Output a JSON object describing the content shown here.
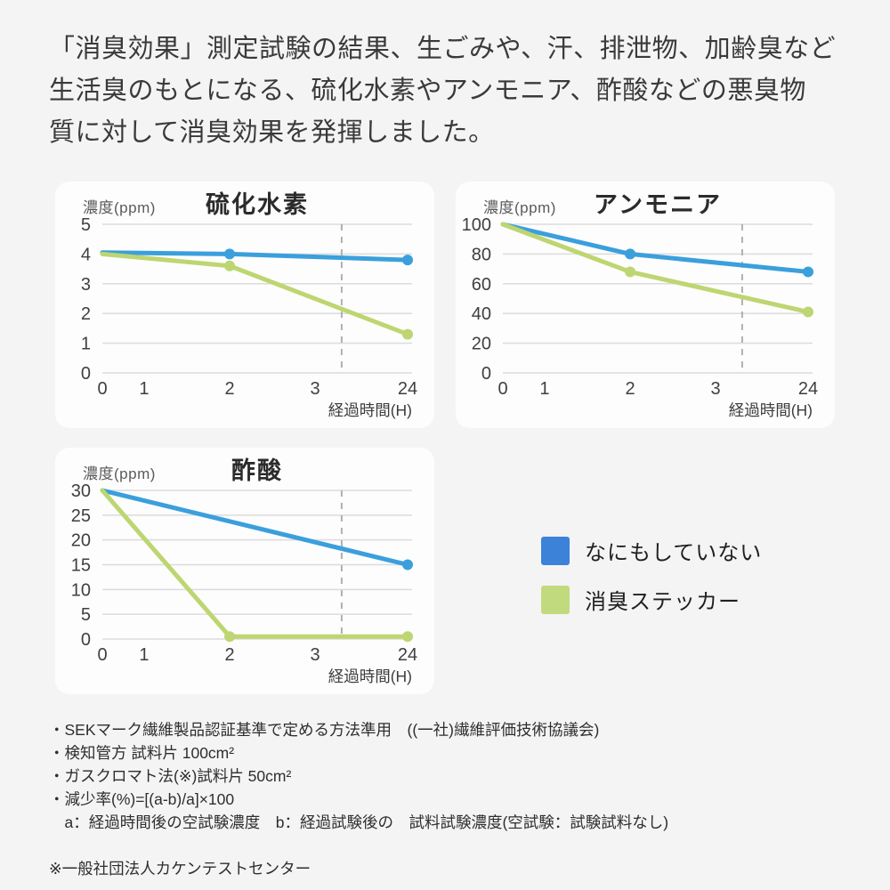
{
  "page": {
    "background": "#f4f4f5",
    "header": "「消臭効果」測定試験の結果、生ごみや、汗、排泄物、加齢臭など\n生活臭のもとになる、硫化水素やアンモニア、酢酸などの悪臭物\n質に対して消臭効果を発揮しました。"
  },
  "colors": {
    "line_blue": "#3b9fdc",
    "line_green": "#bdd671",
    "legend_blue": "#3b82d8",
    "legend_green": "#c1da7d",
    "grid": "#dcdcdc",
    "dashed_guide": "#b0b0b0",
    "tick_label": "#3f3f3f",
    "card_background": "#fdfdfe"
  },
  "chart_data": [
    {
      "type": "line",
      "title": "硫化水素",
      "ylabel": "濃度(ppm)",
      "xlabel": "経過時間(H)",
      "x_tick_labels": [
        "0",
        "1",
        "2",
        "3",
        "24"
      ],
      "x_positions": [
        0,
        0.137,
        0.417,
        0.697,
        1
      ],
      "y_ticks": [
        0,
        1,
        2,
        3,
        4,
        5
      ],
      "ylim": [
        0,
        5
      ],
      "dashed_guide_x": 0.784,
      "grid": true,
      "series": [
        {
          "name": "なにもしていない",
          "color": "#3b9fdc",
          "values": [
            4.05,
            null,
            4.0,
            null,
            3.8
          ],
          "markers": [
            false,
            false,
            true,
            false,
            true
          ]
        },
        {
          "name": "消臭ステッカー",
          "color": "#bdd671",
          "values": [
            4.0,
            null,
            3.6,
            null,
            1.3
          ],
          "markers": [
            false,
            false,
            true,
            false,
            true
          ]
        }
      ]
    },
    {
      "type": "line",
      "title": "アンモニア",
      "ylabel": "濃度(ppm)",
      "xlabel": "経過時間(H)",
      "x_tick_labels": [
        "0",
        "1",
        "2",
        "3",
        "24"
      ],
      "x_positions": [
        0,
        0.137,
        0.417,
        0.697,
        1
      ],
      "y_ticks": [
        0,
        20,
        40,
        60,
        80,
        100
      ],
      "ylim": [
        0,
        100
      ],
      "dashed_guide_x": 0.784,
      "grid": true,
      "series": [
        {
          "name": "なにもしていない",
          "color": "#3b9fdc",
          "values": [
            100,
            null,
            80,
            null,
            68
          ],
          "markers": [
            false,
            false,
            true,
            false,
            true
          ]
        },
        {
          "name": "消臭ステッカー",
          "color": "#bdd671",
          "values": [
            100,
            null,
            68,
            null,
            41
          ],
          "markers": [
            false,
            false,
            true,
            false,
            true
          ]
        }
      ]
    },
    {
      "type": "line",
      "title": "酢酸",
      "ylabel": "濃度(ppm)",
      "xlabel": "経過時間(H)",
      "x_tick_labels": [
        "0",
        "1",
        "2",
        "3",
        "24"
      ],
      "x_positions": [
        0,
        0.137,
        0.417,
        0.697,
        1
      ],
      "y_ticks": [
        0,
        5,
        10,
        15,
        20,
        25,
        30
      ],
      "ylim": [
        0,
        30
      ],
      "dashed_guide_x": 0.784,
      "grid": true,
      "series": [
        {
          "name": "なにもしていない",
          "color": "#3b9fdc",
          "values": [
            30,
            null,
            null,
            null,
            15
          ],
          "markers": [
            false,
            false,
            false,
            false,
            true
          ]
        },
        {
          "name": "消臭ステッカー",
          "color": "#bdd671",
          "values": [
            30,
            null,
            0.5,
            null,
            0.5
          ],
          "markers": [
            false,
            false,
            true,
            false,
            true
          ]
        }
      ]
    }
  ],
  "legend": {
    "items": [
      {
        "label": "なにもしていない",
        "color": "#3b82d8"
      },
      {
        "label": "消臭ステッカー",
        "color": "#c1da7d"
      }
    ]
  },
  "footnotes": {
    "lines": [
      "・SEKマーク繊維製品認証基準で定める方法準用　((一社)繊維評価技術協議会)",
      "・検知管方 試料片 100cm²",
      "・ガスクロマト法(※)試料片 50cm²",
      "・減少率(%)=[(a-b)/a]×100",
      "　a：経過時間後の空試験濃度　b：経過試験後の　試料試験濃度(空試験：試験試料なし)"
    ],
    "source_note": "※一般社団法人カケンテストセンター"
  }
}
